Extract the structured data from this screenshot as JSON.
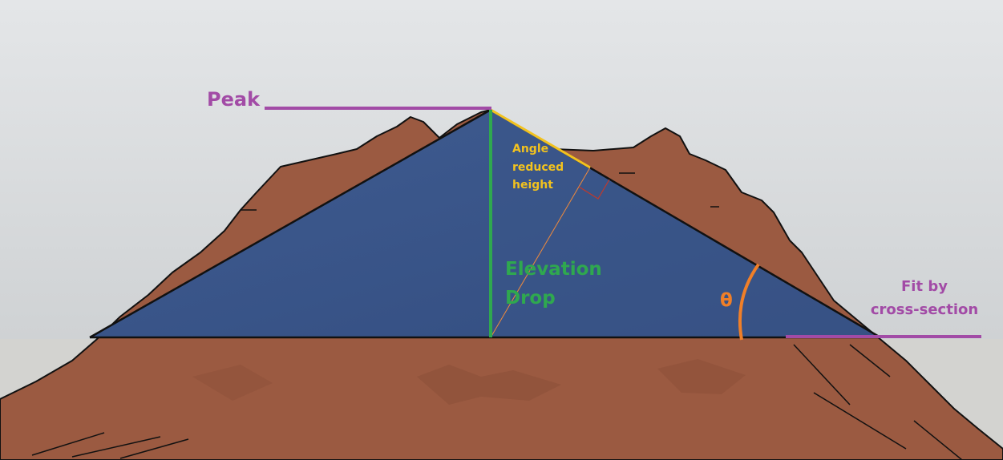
{
  "labels": {
    "peak": "Peak",
    "angle_line1": "Angle",
    "angle_line2": "reduced",
    "angle_line3": "height",
    "elevation_line1": "Elevation",
    "elevation_line2": "Drop",
    "theta": "θ",
    "fit_line1": "Fit by",
    "fit_line2": "cross-section"
  },
  "colors": {
    "sky_top": "#e3e5e7",
    "sky_bottom": "#cfd2d4",
    "ground": "#d2d2cf",
    "terrain": "#9b5a41",
    "terrain_dark": "#7a432e",
    "triangle_fill": "#3a5588",
    "peak_line": "#a24ba6",
    "elevation": "#2fa84f",
    "angle_reduced": "#f2c21e",
    "theta": "#f07f28",
    "right_angle_mark": "#c0392b",
    "edge": "#111111"
  }
}
